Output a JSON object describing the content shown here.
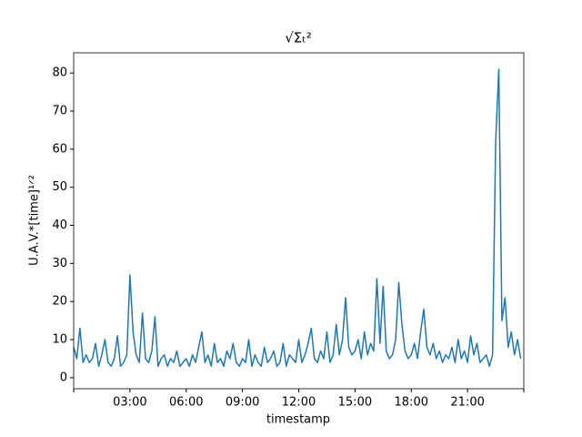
{
  "chart_data": {
    "type": "line",
    "title": "√Σₜ²",
    "xlabel": "timestamp",
    "ylabel": "U.A.V.*[time]¹ᐟ²",
    "color": "#1f77b4",
    "x": [
      "00:00",
      "00:10",
      "00:20",
      "00:30",
      "00:40",
      "00:50",
      "01:00",
      "01:10",
      "01:20",
      "01:30",
      "01:40",
      "01:50",
      "02:00",
      "02:10",
      "02:20",
      "02:30",
      "02:40",
      "02:50",
      "03:00",
      "03:10",
      "03:20",
      "03:30",
      "03:40",
      "03:50",
      "04:00",
      "04:10",
      "04:20",
      "04:30",
      "04:40",
      "04:50",
      "05:00",
      "05:10",
      "05:20",
      "05:30",
      "05:40",
      "05:50",
      "06:00",
      "06:10",
      "06:20",
      "06:30",
      "06:40",
      "06:50",
      "07:00",
      "07:10",
      "07:20",
      "07:30",
      "07:40",
      "07:50",
      "08:00",
      "08:10",
      "08:20",
      "08:30",
      "08:40",
      "08:50",
      "09:00",
      "09:10",
      "09:20",
      "09:30",
      "09:40",
      "09:50",
      "10:00",
      "10:10",
      "10:20",
      "10:30",
      "10:40",
      "10:50",
      "11:00",
      "11:10",
      "11:20",
      "11:30",
      "11:40",
      "11:50",
      "12:00",
      "12:10",
      "12:20",
      "12:30",
      "12:40",
      "12:50",
      "13:00",
      "13:10",
      "13:20",
      "13:30",
      "13:40",
      "13:50",
      "14:00",
      "14:10",
      "14:20",
      "14:30",
      "14:40",
      "14:50",
      "15:00",
      "15:10",
      "15:20",
      "15:30",
      "15:40",
      "15:50",
      "16:00",
      "16:10",
      "16:20",
      "16:30",
      "16:40",
      "16:50",
      "17:00",
      "17:10",
      "17:20",
      "17:30",
      "17:40",
      "17:50",
      "18:00",
      "18:10",
      "18:20",
      "18:30",
      "18:40",
      "18:50",
      "19:00",
      "19:10",
      "19:20",
      "19:30",
      "19:40",
      "19:50",
      "20:00",
      "20:10",
      "20:20",
      "20:30",
      "20:40",
      "20:50",
      "21:00",
      "21:10",
      "21:20",
      "21:30",
      "21:40",
      "21:50",
      "22:00",
      "22:10",
      "22:20",
      "22:30",
      "22:40",
      "22:50",
      "23:00",
      "23:10",
      "23:20",
      "23:30",
      "23:40",
      "23:50"
    ],
    "values": [
      8,
      5,
      13,
      4,
      6,
      4,
      5,
      9,
      3,
      6,
      10,
      4,
      3,
      5,
      11,
      3,
      4,
      6,
      27,
      12,
      6,
      4,
      17,
      5,
      4,
      7,
      16,
      3,
      5,
      6,
      3,
      5,
      4,
      7,
      3,
      4,
      5,
      3,
      6,
      4,
      8,
      12,
      4,
      6,
      3,
      9,
      4,
      5,
      3,
      7,
      5,
      9,
      4,
      3,
      5,
      4,
      10,
      3,
      6,
      4,
      3,
      8,
      4,
      5,
      7,
      3,
      4,
      9,
      3,
      6,
      5,
      4,
      10,
      4,
      6,
      9,
      13,
      5,
      4,
      7,
      5,
      12,
      4,
      6,
      14,
      6,
      10,
      21,
      8,
      6,
      7,
      10,
      5,
      12,
      6,
      9,
      7,
      26,
      9,
      24,
      7,
      5,
      6,
      10,
      25,
      14,
      7,
      5,
      6,
      9,
      5,
      12,
      18,
      8,
      6,
      9,
      5,
      7,
      4,
      6,
      5,
      8,
      4,
      10,
      5,
      7,
      4,
      11,
      6,
      9,
      4,
      5,
      6,
      3,
      6,
      62,
      81,
      15,
      21,
      8,
      12,
      6,
      10,
      5
    ],
    "xlim": [
      "00:00",
      "24:00"
    ],
    "xticks": [
      "03:00",
      "06:00",
      "09:00",
      "12:00",
      "15:00",
      "18:00",
      "21:00"
    ],
    "ylim": [
      -2.9,
      85.3
    ],
    "yticks": [
      0,
      10,
      20,
      30,
      40,
      50,
      60,
      70,
      80
    ]
  }
}
